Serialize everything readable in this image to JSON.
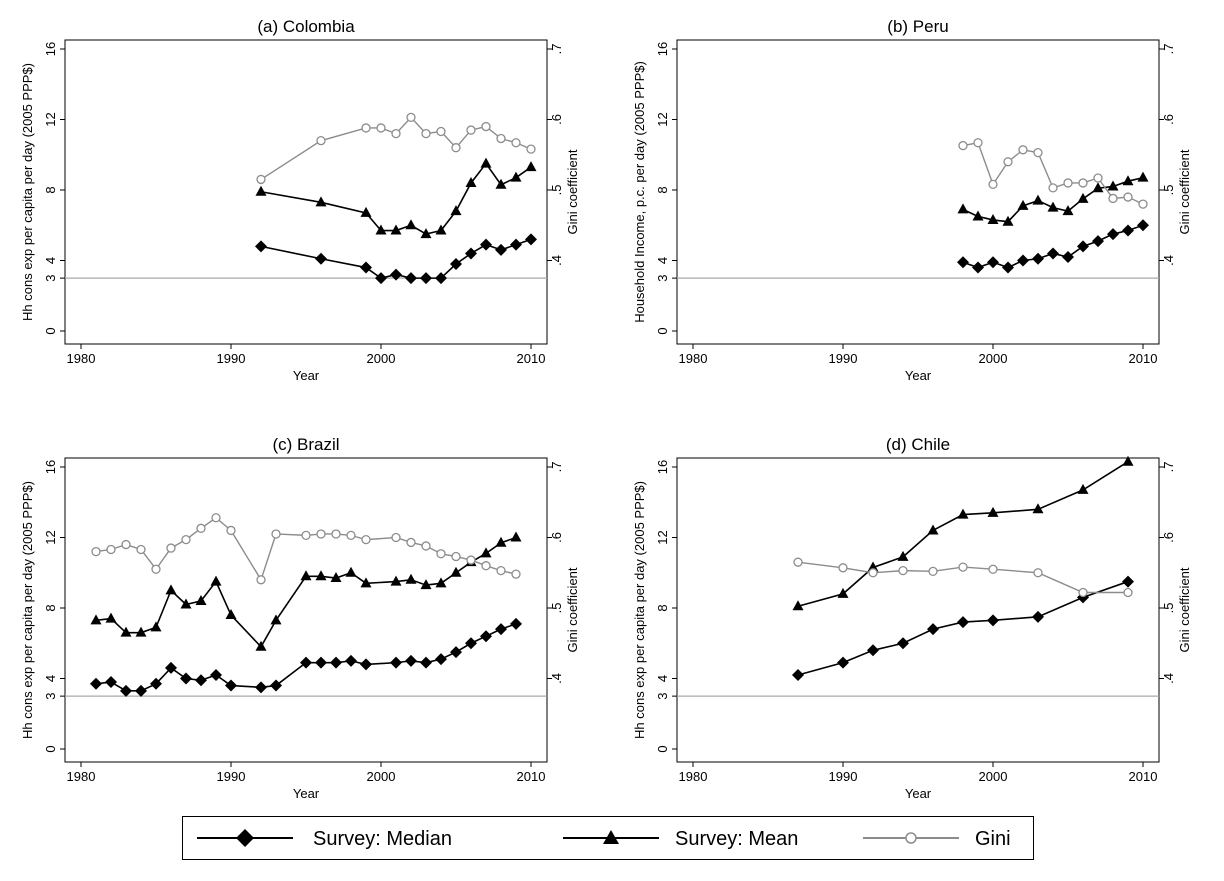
{
  "legend": {
    "median_label": "Survey: Median",
    "mean_label": "Survey: Mean",
    "gini_label": "Gini"
  },
  "chart_data": [
    {
      "type": "line",
      "title": "(a) Colombia",
      "xlabel": "Year",
      "ylabel": "Hh cons exp per capita per day (2005 PPP$)",
      "y2label": "Gini coefficient",
      "xlim": [
        1980,
        2010
      ],
      "ylim": [
        0,
        16
      ],
      "y2lim": [
        0.3,
        0.7
      ],
      "xticks": [
        1980,
        1990,
        2000,
        2010
      ],
      "yticks": [
        0,
        3,
        4,
        8,
        12,
        16
      ],
      "y2ticks": [
        ".4",
        ".5",
        ".6",
        ".7"
      ],
      "reference_line": 3,
      "series": [
        {
          "name": "Survey: Median",
          "axis": "left",
          "marker": "diamond",
          "x": [
            1992,
            1996,
            1999,
            2000,
            2001,
            2002,
            2003,
            2004,
            2005,
            2006,
            2007,
            2008,
            2009,
            2010
          ],
          "y": [
            4.8,
            4.1,
            3.6,
            3.0,
            3.2,
            3.0,
            3.0,
            3.0,
            3.8,
            4.4,
            4.9,
            4.6,
            4.9,
            5.2
          ]
        },
        {
          "name": "Survey: Mean",
          "axis": "left",
          "marker": "triangle",
          "x": [
            1992,
            1996,
            1999,
            2000,
            2001,
            2002,
            2003,
            2004,
            2005,
            2006,
            2007,
            2008,
            2009,
            2010
          ],
          "y": [
            7.9,
            7.3,
            6.7,
            5.7,
            5.7,
            6.0,
            5.5,
            5.7,
            6.8,
            8.4,
            9.5,
            8.3,
            8.7,
            9.3
          ]
        },
        {
          "name": "Gini",
          "axis": "right",
          "marker": "circle",
          "x": [
            1992,
            1996,
            1999,
            2000,
            2001,
            2002,
            2003,
            2004,
            2005,
            2006,
            2007,
            2008,
            2009,
            2010
          ],
          "y": [
            0.515,
            0.57,
            0.588,
            0.588,
            0.58,
            0.603,
            0.58,
            0.583,
            0.56,
            0.585,
            0.59,
            0.573,
            0.567,
            0.558
          ]
        }
      ]
    },
    {
      "type": "line",
      "title": "(b) Peru",
      "xlabel": "Year",
      "ylabel": "Household Income, p.c. per day (2005 PPP$)",
      "y2label": "Gini coefficient",
      "xlim": [
        1980,
        2010
      ],
      "ylim": [
        0,
        16
      ],
      "y2lim": [
        0.3,
        0.7
      ],
      "xticks": [
        1980,
        1990,
        2000,
        2010
      ],
      "yticks": [
        0,
        3,
        4,
        8,
        12,
        16
      ],
      "y2ticks": [
        ".4",
        ".5",
        ".6",
        ".7"
      ],
      "reference_line": 3,
      "series": [
        {
          "name": "Survey: Median",
          "axis": "left",
          "marker": "diamond",
          "x": [
            1998,
            1999,
            2000,
            2001,
            2002,
            2003,
            2004,
            2005,
            2006,
            2007,
            2008,
            2009,
            2010
          ],
          "y": [
            3.9,
            3.6,
            3.9,
            3.6,
            4.0,
            4.1,
            4.4,
            4.2,
            4.8,
            5.1,
            5.5,
            5.7,
            6.0
          ]
        },
        {
          "name": "Survey: Mean",
          "axis": "left",
          "marker": "triangle",
          "x": [
            1998,
            1999,
            2000,
            2001,
            2002,
            2003,
            2004,
            2005,
            2006,
            2007,
            2008,
            2009,
            2010
          ],
          "y": [
            6.9,
            6.5,
            6.3,
            6.2,
            7.1,
            7.4,
            7.0,
            6.8,
            7.5,
            8.1,
            8.2,
            8.5,
            8.7
          ]
        },
        {
          "name": "Gini",
          "axis": "right",
          "marker": "circle",
          "x": [
            1998,
            1999,
            2000,
            2001,
            2002,
            2003,
            2004,
            2005,
            2006,
            2007,
            2008,
            2009,
            2010
          ],
          "y": [
            0.563,
            0.567,
            0.508,
            0.54,
            0.557,
            0.553,
            0.503,
            0.51,
            0.51,
            0.517,
            0.488,
            0.49,
            0.48
          ]
        }
      ]
    },
    {
      "type": "line",
      "title": "(c) Brazil",
      "xlabel": "Year",
      "ylabel": "Hh cons exp per capita per day (2005 PPP$)",
      "y2label": "Gini coefficient",
      "xlim": [
        1980,
        2010
      ],
      "ylim": [
        0,
        16
      ],
      "y2lim": [
        0.3,
        0.7
      ],
      "xticks": [
        1980,
        1990,
        2000,
        2010
      ],
      "yticks": [
        0,
        3,
        4,
        8,
        12,
        16
      ],
      "y2ticks": [
        ".4",
        ".5",
        ".6",
        ".7"
      ],
      "reference_line": 3,
      "series": [
        {
          "name": "Survey: Median",
          "axis": "left",
          "marker": "diamond",
          "x": [
            1981,
            1982,
            1983,
            1984,
            1985,
            1986,
            1987,
            1988,
            1989,
            1990,
            1992,
            1993,
            1995,
            1996,
            1997,
            1998,
            1999,
            2001,
            2002,
            2003,
            2004,
            2005,
            2006,
            2007,
            2008,
            2009
          ],
          "y": [
            3.7,
            3.8,
            3.3,
            3.3,
            3.7,
            4.6,
            4.0,
            3.9,
            4.2,
            3.6,
            3.5,
            3.6,
            4.9,
            4.9,
            4.9,
            5.0,
            4.8,
            4.9,
            5.0,
            4.9,
            5.1,
            5.5,
            6.0,
            6.4,
            6.8,
            7.1
          ]
        },
        {
          "name": "Survey: Mean",
          "axis": "left",
          "marker": "triangle",
          "x": [
            1981,
            1982,
            1983,
            1984,
            1985,
            1986,
            1987,
            1988,
            1989,
            1990,
            1992,
            1993,
            1995,
            1996,
            1997,
            1998,
            1999,
            2001,
            2002,
            2003,
            2004,
            2005,
            2006,
            2007,
            2008,
            2009
          ],
          "y": [
            7.3,
            7.4,
            6.6,
            6.6,
            6.9,
            9.0,
            8.2,
            8.4,
            9.5,
            7.6,
            5.8,
            7.3,
            9.8,
            9.8,
            9.7,
            10.0,
            9.4,
            9.5,
            9.6,
            9.3,
            9.4,
            10.0,
            10.6,
            11.1,
            11.7,
            12.0
          ]
        },
        {
          "name": "Gini",
          "axis": "right",
          "marker": "circle",
          "x": [
            1981,
            1982,
            1983,
            1984,
            1985,
            1986,
            1987,
            1988,
            1989,
            1990,
            1992,
            1993,
            1995,
            1996,
            1997,
            1998,
            1999,
            2001,
            2002,
            2003,
            2004,
            2005,
            2006,
            2007,
            2008,
            2009
          ],
          "y": [
            0.58,
            0.583,
            0.59,
            0.583,
            0.555,
            0.585,
            0.597,
            0.613,
            0.628,
            0.61,
            0.54,
            0.605,
            0.603,
            0.605,
            0.605,
            0.603,
            0.597,
            0.6,
            0.593,
            0.588,
            0.577,
            0.573,
            0.568,
            0.56,
            0.553,
            0.548
          ]
        }
      ]
    },
    {
      "type": "line",
      "title": "(d) Chile",
      "xlabel": "Year",
      "ylabel": "Hh cons exp per capita per day (2005 PPP$)",
      "y2label": "Gini coefficient",
      "xlim": [
        1980,
        2010
      ],
      "ylim": [
        0,
        16
      ],
      "y2lim": [
        0.3,
        0.7
      ],
      "xticks": [
        1980,
        1990,
        2000,
        2010
      ],
      "yticks": [
        0,
        3,
        4,
        8,
        12,
        16
      ],
      "y2ticks": [
        ".4",
        ".5",
        ".6",
        ".7"
      ],
      "reference_line": 3,
      "series": [
        {
          "name": "Survey: Median",
          "axis": "left",
          "marker": "diamond",
          "x": [
            1987,
            1990,
            1992,
            1994,
            1996,
            1998,
            2000,
            2003,
            2006,
            2009
          ],
          "y": [
            4.2,
            4.9,
            5.6,
            6.0,
            6.8,
            7.2,
            7.3,
            7.5,
            8.6,
            9.5
          ]
        },
        {
          "name": "Survey: Mean",
          "axis": "left",
          "marker": "triangle",
          "x": [
            1987,
            1990,
            1992,
            1994,
            1996,
            1998,
            2000,
            2003,
            2006,
            2009
          ],
          "y": [
            8.1,
            8.8,
            10.3,
            10.9,
            12.4,
            13.3,
            13.4,
            13.6,
            14.7,
            16.3
          ]
        },
        {
          "name": "Gini",
          "axis": "right",
          "marker": "circle",
          "x": [
            1987,
            1990,
            1992,
            1994,
            1996,
            1998,
            2000,
            2003,
            2006,
            2009
          ],
          "y": [
            0.565,
            0.557,
            0.55,
            0.553,
            0.552,
            0.558,
            0.555,
            0.55,
            0.522,
            0.522
          ]
        }
      ]
    }
  ]
}
